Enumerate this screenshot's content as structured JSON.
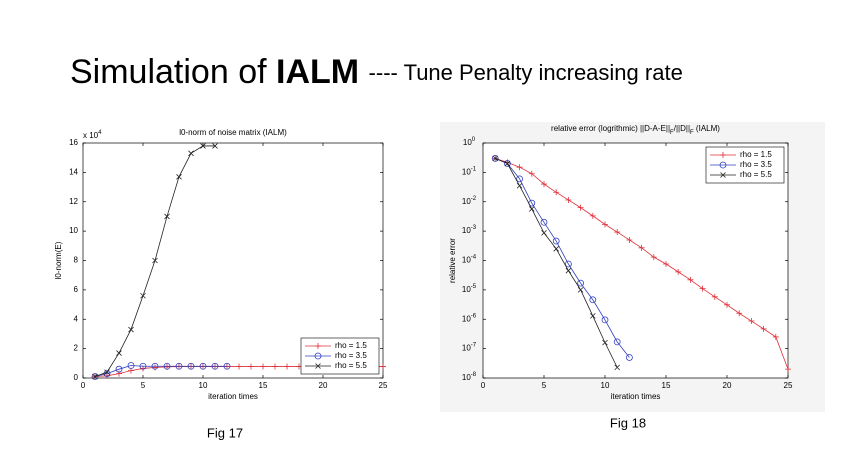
{
  "title": "Simulation of",
  "title_bold": "IALM",
  "subtitle": "---- Tune Penalty increasing rate",
  "chart_data": [
    {
      "type": "line",
      "title": "l0-norm of noise matrix (IALM)",
      "caption": "Fig 17",
      "xlabel": "iteration times",
      "ylabel": "l0-norm(E)",
      "y_multiplier": "x 10",
      "y_multiplier_exp": "4",
      "legend": "lower right",
      "log_y": false,
      "xlim": [
        0,
        25
      ],
      "xticks": [
        0,
        5,
        10,
        15,
        20,
        25
      ],
      "ylim": [
        0,
        16
      ],
      "yticks": [
        0,
        2,
        4,
        6,
        8,
        10,
        12,
        14,
        16
      ],
      "series": [
        {
          "name": "rho = 1.5",
          "color": "#e0303a",
          "marker": "+",
          "x": [
            1,
            2,
            3,
            4,
            5,
            6,
            7,
            8,
            9,
            10,
            11,
            12,
            13,
            14,
            15,
            16,
            17,
            18,
            19,
            20,
            21,
            22,
            23,
            24,
            25
          ],
          "values": [
            0.1,
            0.15,
            0.3,
            0.5,
            0.65,
            0.72,
            0.76,
            0.78,
            0.78,
            0.78,
            0.78,
            0.78,
            0.78,
            0.78,
            0.78,
            0.78,
            0.78,
            0.78,
            0.78,
            0.78,
            0.78,
            0.78,
            0.78,
            0.78,
            0.78
          ]
        },
        {
          "name": "rho = 3.5",
          "color": "#3040c0",
          "marker": "o",
          "x": [
            1,
            2,
            3,
            4,
            5,
            6,
            7,
            8,
            9,
            10,
            11,
            12
          ],
          "values": [
            0.1,
            0.3,
            0.6,
            0.85,
            0.8,
            0.8,
            0.8,
            0.8,
            0.8,
            0.8,
            0.8,
            0.8
          ]
        },
        {
          "name": "rho = 5.5",
          "color": "#222222",
          "marker": "x",
          "x": [
            1,
            2,
            3,
            4,
            5,
            6,
            7,
            8,
            9,
            10,
            11
          ],
          "values": [
            0.1,
            0.4,
            1.7,
            3.3,
            5.6,
            8.0,
            11.0,
            13.7,
            15.3,
            15.8,
            15.8
          ]
        }
      ]
    },
    {
      "type": "line",
      "title_parts": [
        "relative error (logrithmic) ||D-A-E||",
        "F",
        "/||D||",
        "F",
        " (IALM)"
      ],
      "caption": "Fig 18",
      "xlabel": "iteration times",
      "ylabel": "relative error",
      "legend": "upper right",
      "log_y": true,
      "xlim": [
        0,
        25
      ],
      "xticks": [
        0,
        5,
        10,
        15,
        20,
        25
      ],
      "ylim": [
        1e-08,
        1
      ],
      "yticks": [
        {
          "value": 1,
          "label": "10",
          "exp": "0"
        },
        {
          "value": 0.1,
          "label": "10",
          "exp": "-1"
        },
        {
          "value": 0.01,
          "label": "10",
          "exp": "-2"
        },
        {
          "value": 0.001,
          "label": "10",
          "exp": "-3"
        },
        {
          "value": 0.0001,
          "label": "10",
          "exp": "-4"
        },
        {
          "value": 1e-05,
          "label": "10",
          "exp": "-5"
        },
        {
          "value": 1e-06,
          "label": "10",
          "exp": "-6"
        },
        {
          "value": 1e-07,
          "label": "10",
          "exp": "-7"
        },
        {
          "value": 1e-08,
          "label": "10",
          "exp": "-8"
        }
      ],
      "series": [
        {
          "name": "rho = 1.5",
          "color": "#e0303a",
          "marker": "+",
          "x": [
            1,
            2,
            3,
            4,
            5,
            6,
            7,
            8,
            9,
            10,
            11,
            12,
            13,
            14,
            15,
            16,
            17,
            18,
            19,
            20,
            21,
            22,
            23,
            24,
            25
          ],
          "values": [
            0.3,
            0.22,
            0.15,
            0.09,
            0.04,
            0.021,
            0.0115,
            0.0063,
            0.0033,
            0.0017,
            0.00093,
            0.0005,
            0.00027,
            0.00013,
            7.6e-05,
            4.1e-05,
            2.2e-05,
            1.1e-05,
            5.8e-06,
            3.1e-06,
            1.6e-06,
            8.7e-07,
            4.7e-07,
            2.5e-07,
            2e-08
          ]
        },
        {
          "name": "rho = 3.5",
          "color": "#3040c0",
          "marker": "o",
          "x": [
            1,
            2,
            3,
            4,
            5,
            6,
            7,
            8,
            9,
            10,
            11,
            12
          ],
          "values": [
            0.3,
            0.2,
            0.06,
            0.009,
            0.002,
            0.00046,
            7.6e-05,
            1.7e-05,
            4.6e-06,
            9.5e-07,
            1.7e-07,
            5e-08
          ]
        },
        {
          "name": "rho = 5.5",
          "color": "#222222",
          "marker": "x",
          "x": [
            1,
            2,
            3,
            4,
            5,
            6,
            7,
            8,
            9,
            10,
            11
          ],
          "values": [
            0.3,
            0.2,
            0.035,
            0.0057,
            0.00087,
            0.00025,
            4.5e-05,
            1e-05,
            1.3e-06,
            1.6e-07,
            2.3e-08
          ]
        }
      ]
    }
  ]
}
